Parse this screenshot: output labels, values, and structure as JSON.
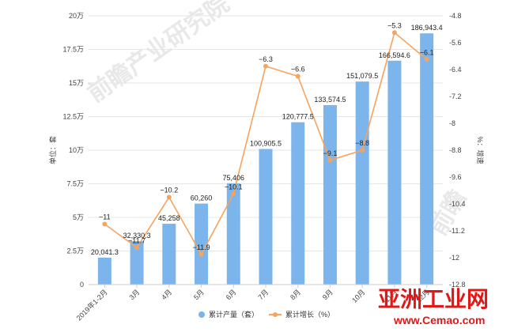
{
  "chart_data": {
    "type": "bar",
    "categories": [
      "2019年1-2月",
      "3月",
      "4月",
      "5月",
      "6月",
      "7月",
      "8月",
      "9月",
      "10月",
      "11月",
      "12月"
    ],
    "series": [
      {
        "name": "累计产量（套）",
        "type": "bar",
        "axis": "left",
        "color": "#7cb5ec",
        "values": [
          20041.3,
          32330.3,
          45258,
          60260,
          75406,
          100905.5,
          120777.5,
          133574.5,
          151079.5,
          166594.6,
          186943.4
        ],
        "labels": [
          "20,041.3",
          "32,330.3",
          "45,258",
          "60,260",
          "75,406",
          "100,905.5",
          "120,777.5",
          "133,574.5",
          "151,079.5",
          "166,594.6",
          "186,943.4"
        ]
      },
      {
        "name": "累计增长（%）",
        "type": "line",
        "axis": "right",
        "color": "#f7a35c",
        "values": [
          -11,
          -11.7,
          -10.2,
          -11.9,
          -10.1,
          -6.3,
          -6.6,
          -9.1,
          -8.8,
          -5.3,
          -6.1
        ],
        "labels": [
          "−11",
          "−11.7",
          "−10.2",
          "−11.9",
          "−10.1",
          "−6.3",
          "−6.6",
          "−9.1",
          "−8.8",
          "−5.3",
          "−6.1"
        ]
      }
    ],
    "ylabel": "单位：套",
    "y2label": "%：增速",
    "ylim": [
      0,
      200000
    ],
    "y2lim": [
      -12.8,
      -4.8
    ],
    "yticks": [
      "0",
      "2.5万",
      "5万",
      "7.5万",
      "10万",
      "12.5万",
      "15万",
      "17.5万",
      "20万"
    ],
    "y2ticks": [
      "-12.8",
      "-12",
      "-11.2",
      "-10.4",
      "-9.6",
      "-8.8",
      "-8",
      "-7.2",
      "-6.4",
      "-5.6",
      "-4.8"
    ],
    "legend_position": "bottom",
    "grid": true
  },
  "watermark": {
    "main": "亚洲工业网",
    "url": "www.Cemao.com"
  },
  "colors": {
    "bar": "#7cb5ec",
    "line": "#f7a35c",
    "grid": "#e6e6e6",
    "axis": "#cccccc"
  }
}
